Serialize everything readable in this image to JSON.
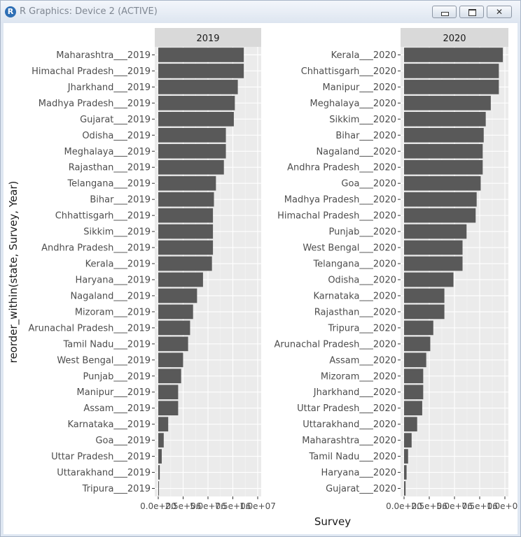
{
  "window": {
    "title": "R Graphics: Device 2 (ACTIVE)",
    "icon": "r-logo-icon",
    "buttons": [
      "minimize-icon",
      "maximize-icon",
      "close-icon"
    ]
  },
  "chart_data": {
    "type": "bar",
    "orientation": "horizontal",
    "xlabel": "Survey",
    "ylabel": "reorder_within(state, Survey, Year)",
    "xlim": [
      0,
      10000000
    ],
    "grid": true,
    "colors": {
      "bar": "#595959",
      "panel": "#ebebeb",
      "strip": "#d9d9d9",
      "grid": "#ffffff"
    },
    "facets": [
      {
        "strip": "2019",
        "x_tick_labels": [
          "0.0e+00",
          "2.5e+06",
          "5.0e+06",
          "7.5e+06",
          "1.0e+07"
        ],
        "categories": [
          "Maharashtra___2019",
          "Himachal Pradesh___2019",
          "Jharkhand___2019",
          "Madhya Pradesh___2019",
          "Gujarat___2019",
          "Odisha___2019",
          "Meghalaya___2019",
          "Rajasthan___2019",
          "Telangana___2019",
          "Bihar___2019",
          "Chhattisgarh___2019",
          "Sikkim___2019",
          "Andhra Pradesh___2019",
          "Kerala___2019",
          "Haryana___2019",
          "Nagaland___2019",
          "Mizoram___2019",
          "Arunachal Pradesh___2019",
          "Tamil Nadu___2019",
          "West Bengal___2019",
          "Punjab___2019",
          "Manipur___2019",
          "Assam___2019",
          "Karnataka___2019",
          "Goa___2019",
          "Uttar Pradesh___2019",
          "Uttarakhand___2019",
          "Tripura___2019"
        ],
        "values": [
          8600000,
          8600000,
          8000000,
          7700000,
          7600000,
          6800000,
          6800000,
          6600000,
          5800000,
          5600000,
          5500000,
          5500000,
          5500000,
          5400000,
          4500000,
          3900000,
          3500000,
          3200000,
          3000000,
          2500000,
          2300000,
          2000000,
          2000000,
          1000000,
          550000,
          350000,
          150000,
          20000
        ]
      },
      {
        "strip": "2020",
        "x_tick_labels": [
          "0.0e+00",
          "2.5e+06",
          "5.0e+06",
          "7.5e+06",
          "1.0e+07"
        ],
        "categories": [
          "Kerala___2020",
          "Chhattisgarh___2020",
          "Manipur___2020",
          "Meghalaya___2020",
          "Sikkim___2020",
          "Bihar___2020",
          "Nagaland___2020",
          "Andhra Pradesh___2020",
          "Goa___2020",
          "Madhya Pradesh___2020",
          "Himachal Pradesh___2020",
          "Punjab___2020",
          "West Bengal___2020",
          "Telangana___2020",
          "Odisha___2020",
          "Karnataka___2020",
          "Rajasthan___2020",
          "Tripura___2020",
          "Arunachal Pradesh___2020",
          "Assam___2020",
          "Mizoram___2020",
          "Jharkhand___2020",
          "Uttar Pradesh___2020",
          "Uttarakhand___2020",
          "Maharashtra___2020",
          "Tamil Nadu___2020",
          "Haryana___2020",
          "Gujarat___2020"
        ],
        "values": [
          9800000,
          9400000,
          9400000,
          8600000,
          8100000,
          7900000,
          7800000,
          7800000,
          7600000,
          7200000,
          7100000,
          6200000,
          5800000,
          5800000,
          4900000,
          4000000,
          4000000,
          2900000,
          2600000,
          2200000,
          1900000,
          1900000,
          1800000,
          1300000,
          750000,
          400000,
          250000,
          150000
        ]
      }
    ]
  }
}
